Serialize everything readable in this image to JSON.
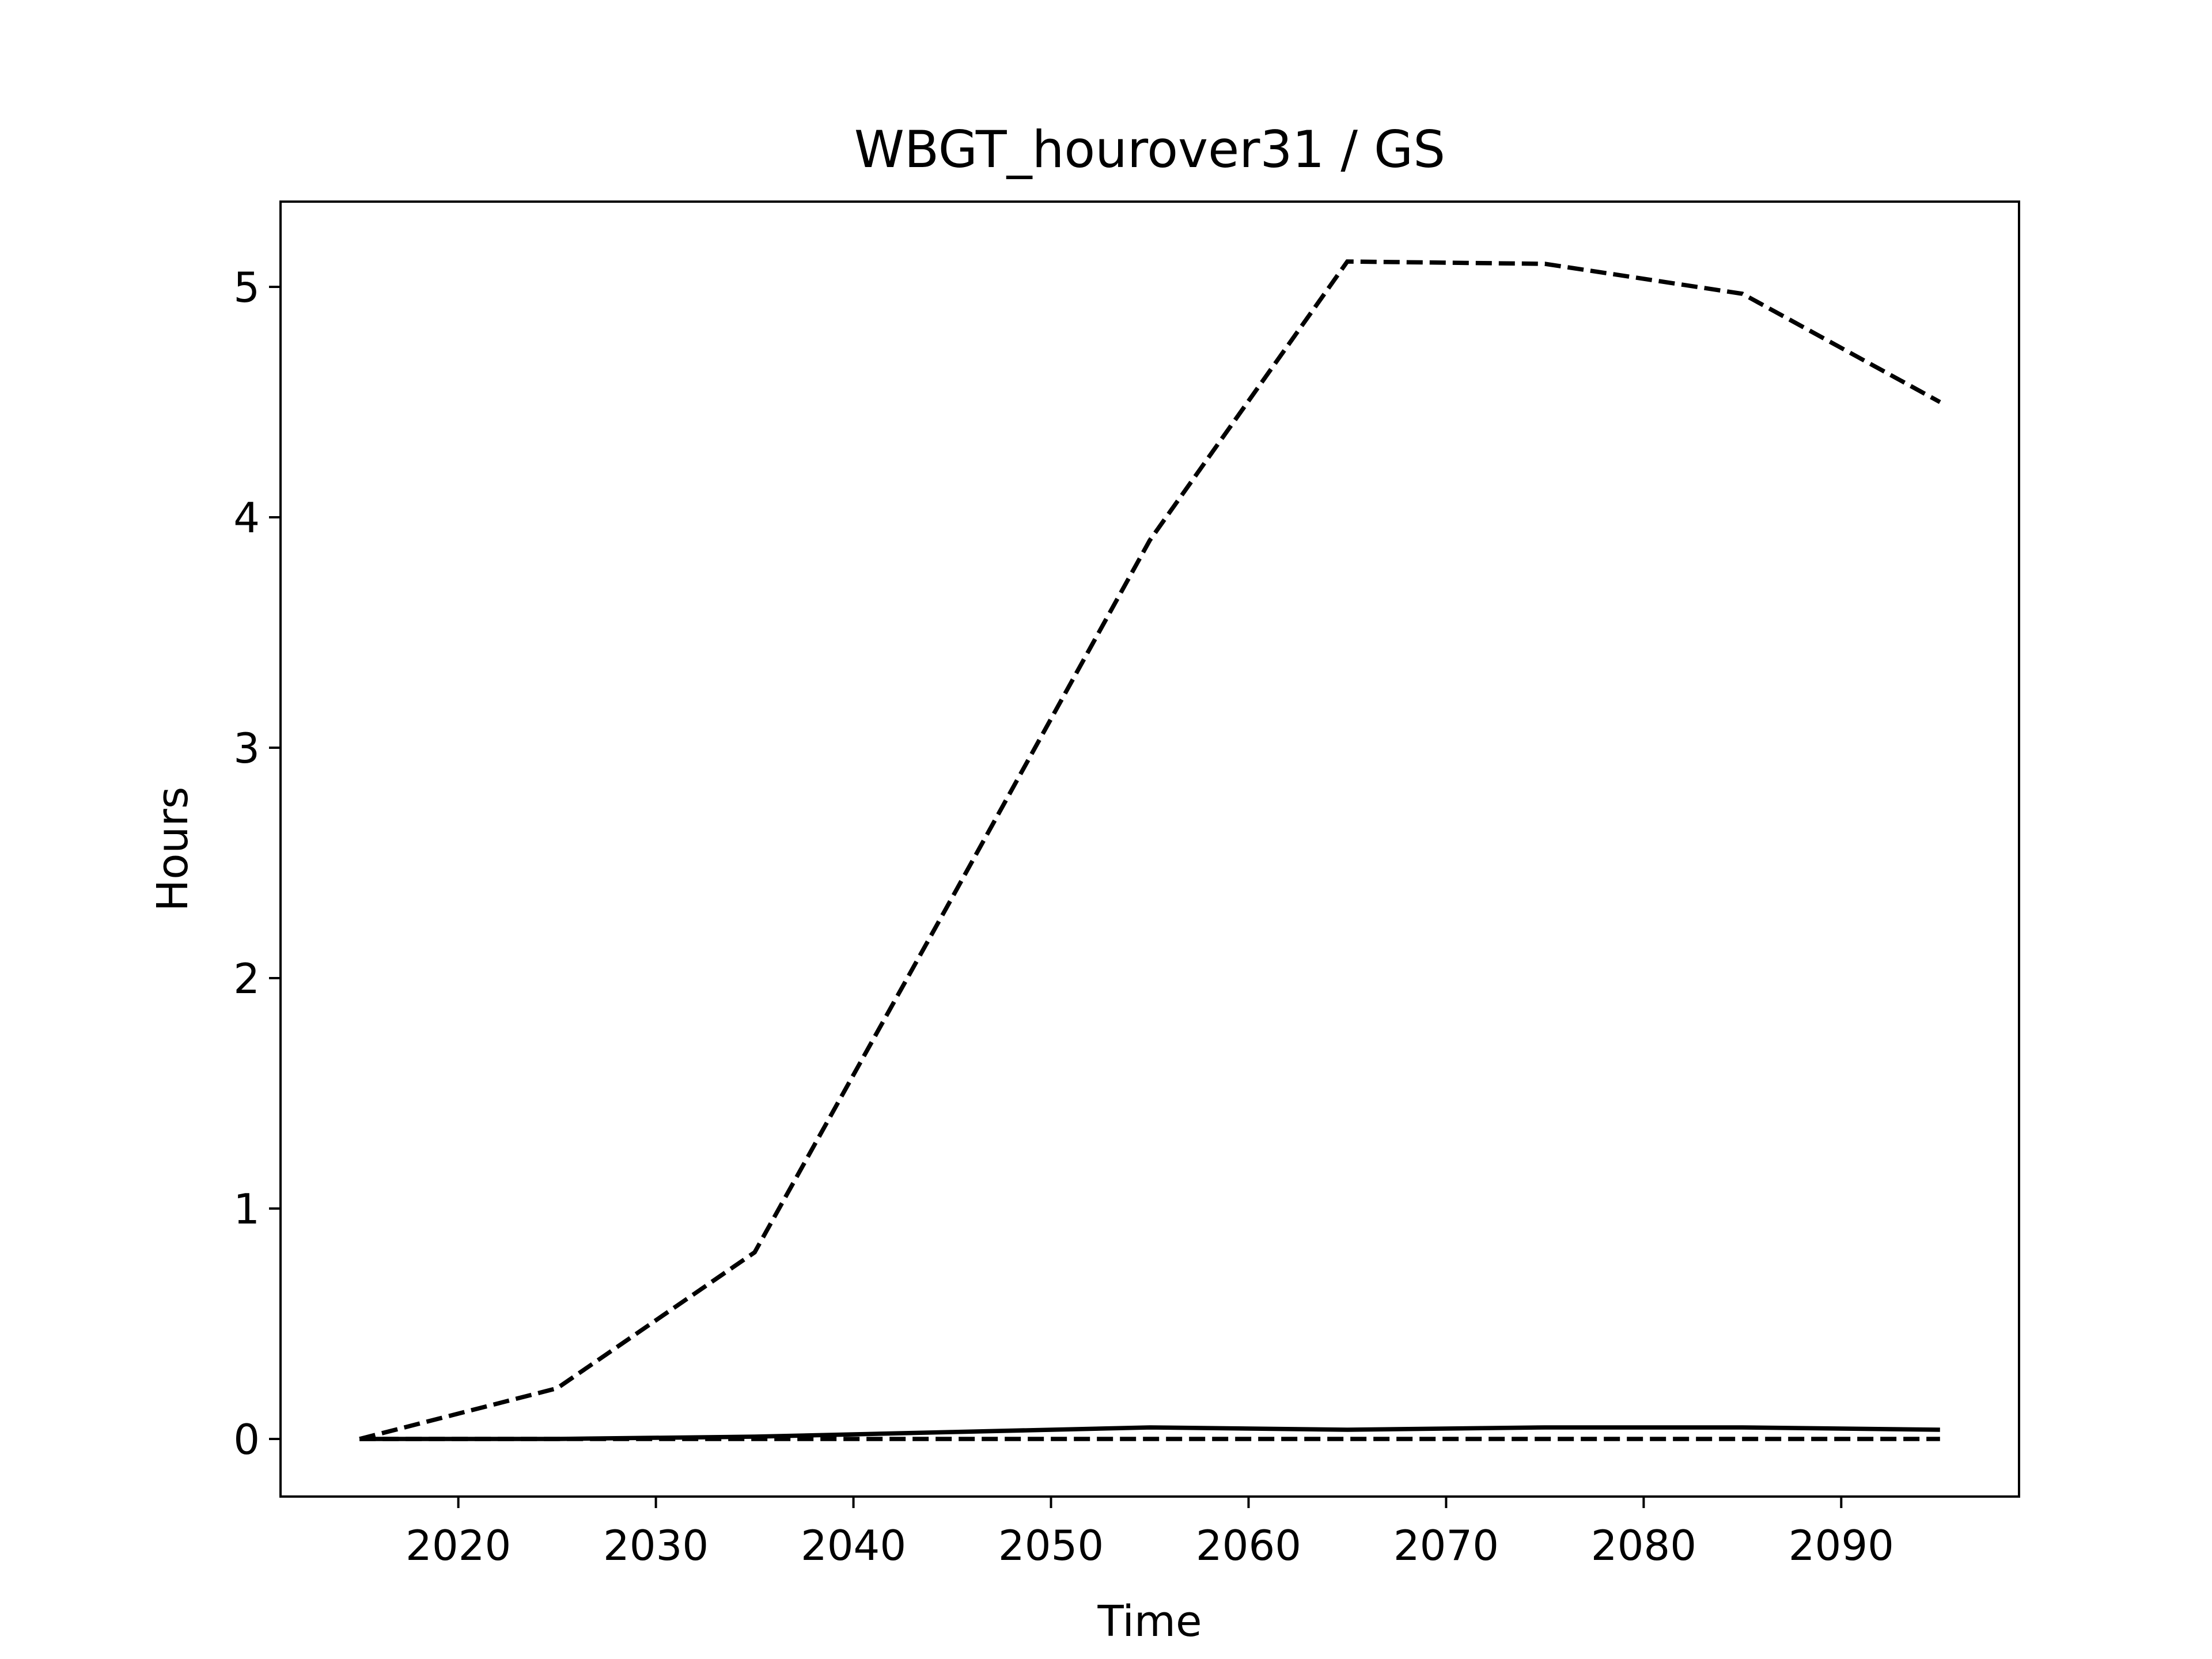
{
  "chart_data": {
    "type": "line",
    "title": "WBGT_hourover31 / GS",
    "xlabel": "Time",
    "ylabel": "Hours",
    "x": [
      2015,
      2025,
      2035,
      2045,
      2055,
      2065,
      2075,
      2085,
      2095
    ],
    "series": [
      {
        "color": "#000000",
        "linestyle": "dashed",
        "values": [
          0,
          0.22,
          0.81,
          2.35,
          3.9,
          5.11,
          5.1,
          4.97,
          4.5
        ]
      },
      {
        "color": "#000000",
        "linestyle": "solid",
        "values": [
          0,
          0,
          0.01,
          0.03,
          0.05,
          0.04,
          0.05,
          0.05,
          0.04
        ]
      },
      {
        "color": "#000000",
        "linestyle": "dashed",
        "values": [
          0,
          0,
          0,
          0,
          0,
          0,
          0,
          0,
          0
        ]
      }
    ],
    "xlim": [
      2011,
      2099
    ],
    "xticks": [
      2020,
      2030,
      2040,
      2050,
      2060,
      2070,
      2080,
      2090
    ],
    "ylim": [
      -0.25,
      5.37
    ],
    "yticks": [
      0,
      1,
      2,
      3,
      4,
      5
    ],
    "grid": false
  }
}
